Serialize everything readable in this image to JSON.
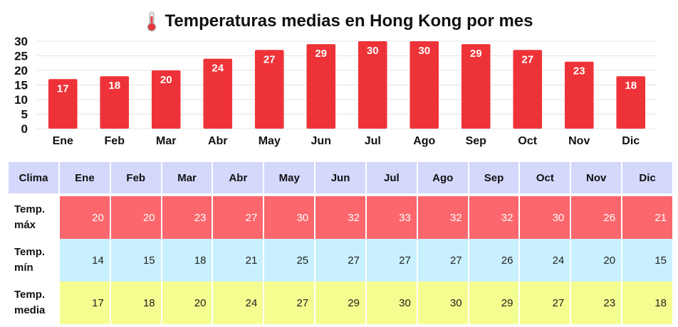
{
  "title": "Temperaturas medias en Hong Kong por mes",
  "title_icon": "thermometer-icon",
  "colors": {
    "bar": "#ee3338",
    "header_bg": "#d4d8fb",
    "max_row": "#fb676c",
    "min_row": "#c9f0ff",
    "mean_row": "#f4fd90"
  },
  "chart_data": {
    "type": "bar",
    "title": "Temperaturas medias en Hong Kong por mes",
    "categories": [
      "Ene",
      "Feb",
      "Mar",
      "Abr",
      "May",
      "Jun",
      "Jul",
      "Ago",
      "Sep",
      "Oct",
      "Nov",
      "Dic"
    ],
    "values": [
      17,
      18,
      20,
      24,
      27,
      29,
      30,
      30,
      29,
      27,
      23,
      18
    ],
    "ylim": [
      0,
      30
    ],
    "yticks": [
      0,
      5,
      10,
      15,
      20,
      25,
      30
    ],
    "grid": true,
    "data_labels": true
  },
  "table": {
    "header_label": "Clima",
    "months": [
      "Ene",
      "Feb",
      "Mar",
      "Abr",
      "May",
      "Jun",
      "Jul",
      "Ago",
      "Sep",
      "Oct",
      "Nov",
      "Dic"
    ],
    "rows": [
      {
        "label_line1": "Temp.",
        "label_line2": "máx",
        "values": [
          "20",
          "20",
          "23",
          "27",
          "30",
          "32",
          "33",
          "32",
          "32",
          "30",
          "26",
          "21"
        ]
      },
      {
        "label_line1": "Temp.",
        "label_line2": "mín",
        "values": [
          "14",
          "15",
          "18",
          "21",
          "25",
          "27",
          "27",
          "27",
          "26",
          "24",
          "20",
          "15"
        ]
      },
      {
        "label_line1": "Temp.",
        "label_line2": "media",
        "values": [
          "17",
          "18",
          "20",
          "24",
          "27",
          "29",
          "30",
          "30",
          "29",
          "27",
          "23",
          "18"
        ]
      }
    ]
  }
}
